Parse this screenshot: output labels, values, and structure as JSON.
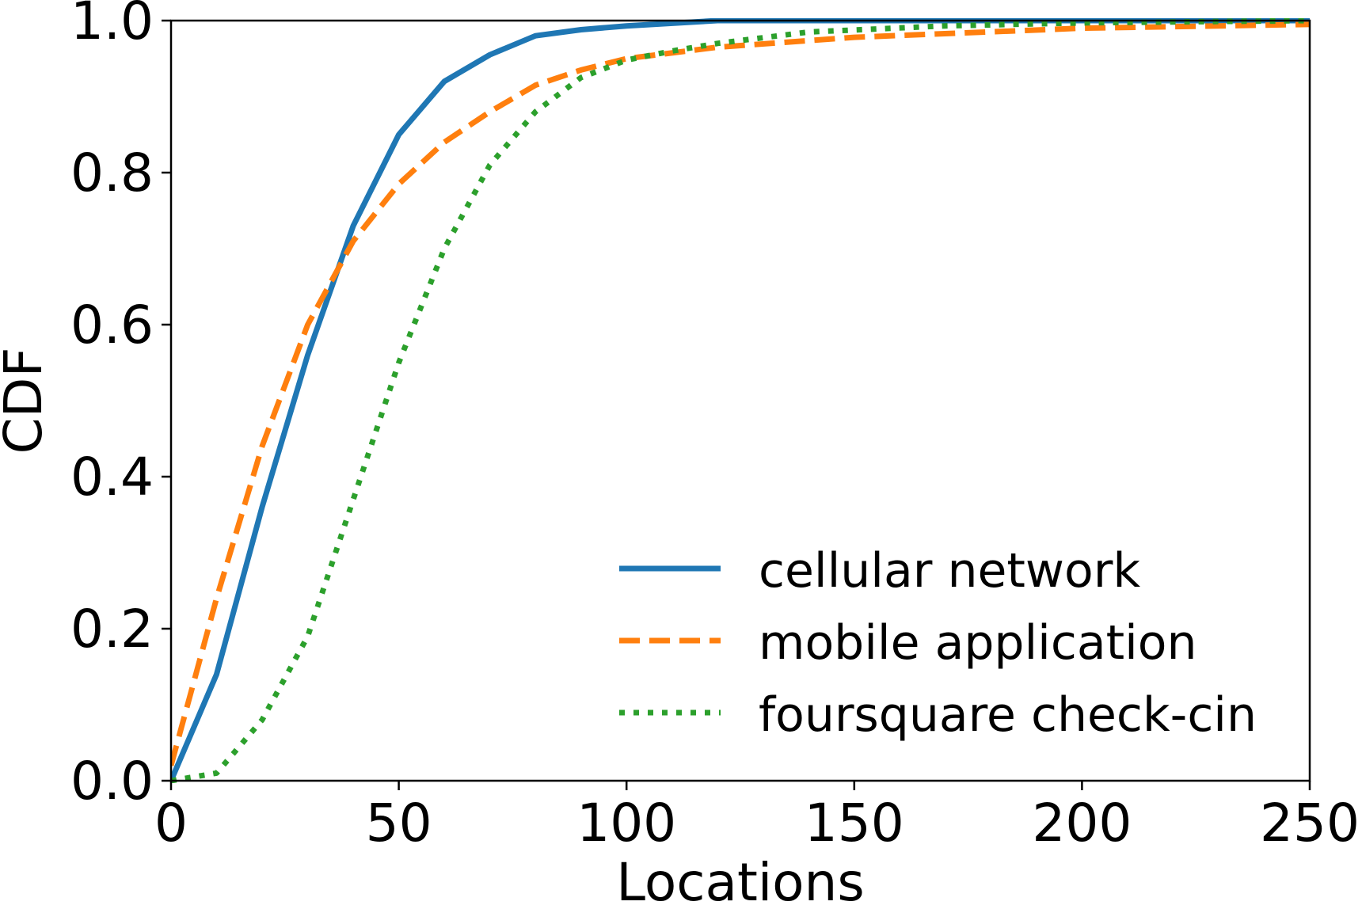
{
  "chart_data": {
    "type": "line",
    "title": "",
    "xlabel": "Locations",
    "ylabel": "CDF",
    "xlim": [
      0,
      250
    ],
    "ylim": [
      0.0,
      1.0
    ],
    "x_ticks": [
      0,
      50,
      100,
      150,
      200,
      250
    ],
    "x_tick_labels": [
      "0",
      "50",
      "100",
      "150",
      "200",
      "250"
    ],
    "y_ticks": [
      0.0,
      0.2,
      0.4,
      0.6,
      0.8,
      1.0
    ],
    "y_tick_labels": [
      "0.0",
      "0.2",
      "0.4",
      "0.6",
      "0.8",
      "1.0"
    ],
    "grid": false,
    "legend_position": "lower-right",
    "series": [
      {
        "name": "cellular network",
        "color": "#1f77b4",
        "style": "solid",
        "x": [
          0,
          10,
          20,
          30,
          40,
          50,
          60,
          70,
          80,
          90,
          100,
          120,
          150,
          200,
          250
        ],
        "y": [
          0.0,
          0.14,
          0.36,
          0.56,
          0.73,
          0.85,
          0.92,
          0.955,
          0.98,
          0.988,
          0.993,
          1.0,
          1.0,
          1.0,
          1.0
        ]
      },
      {
        "name": "mobile application",
        "color": "#ff7f0e",
        "style": "dashed",
        "x": [
          0,
          10,
          20,
          30,
          40,
          50,
          60,
          70,
          80,
          90,
          100,
          120,
          150,
          200,
          250
        ],
        "y": [
          0.02,
          0.24,
          0.44,
          0.6,
          0.71,
          0.785,
          0.84,
          0.88,
          0.915,
          0.935,
          0.95,
          0.965,
          0.978,
          0.99,
          0.995
        ]
      },
      {
        "name": "foursquare check-cin",
        "color": "#2ca02c",
        "style": "dotted",
        "x": [
          0,
          10,
          20,
          30,
          40,
          50,
          60,
          70,
          80,
          90,
          100,
          110,
          120,
          140,
          170,
          200,
          250
        ],
        "y": [
          0.0,
          0.01,
          0.08,
          0.19,
          0.37,
          0.55,
          0.7,
          0.81,
          0.88,
          0.925,
          0.948,
          0.96,
          0.97,
          0.985,
          0.993,
          0.997,
          1.0
        ]
      }
    ]
  }
}
